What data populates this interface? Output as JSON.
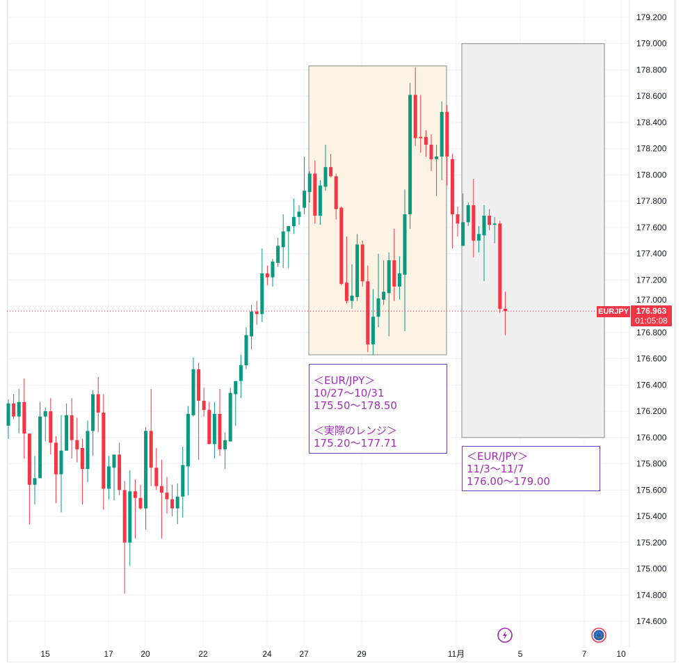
{
  "chart_data": {
    "type": "candlestick",
    "symbol": "EURJPY",
    "interval_note": "4-hour candles",
    "colors": {
      "up": "#089981",
      "down": "#f23645",
      "range_box_1": "#fdf3e4",
      "range_box_2": "#f0f0f0",
      "note_text": "#a32fb8",
      "note_border": "#6a3fc0"
    },
    "y_axis": {
      "min": 174.6,
      "max": 179.2,
      "step": 0.2,
      "tick_labels": [
        "179.200",
        "179.000",
        "178.800",
        "178.600",
        "178.400",
        "178.200",
        "178.000",
        "177.800",
        "177.600",
        "177.400",
        "177.200",
        "177.000",
        "176.800",
        "176.600",
        "176.400",
        "176.200",
        "176.000",
        "175.800",
        "175.600",
        "175.400",
        "175.200",
        "175.000",
        "174.800",
        "174.600"
      ]
    },
    "x_axis": {
      "tick_labels": [
        "15",
        "17",
        "20",
        "22",
        "24",
        "27",
        "29",
        "11月",
        "5",
        "7",
        "10"
      ]
    },
    "current_price": {
      "symbol_label": "EURJPY",
      "price": "176.963",
      "countdown": "01:05:08",
      "value": 176.963
    },
    "candles": [
      [
        176.09,
        176.29,
        175.99,
        176.26
      ],
      [
        176.26,
        176.33,
        176.14,
        176.16
      ],
      [
        176.16,
        176.37,
        176.03,
        176.27
      ],
      [
        176.27,
        176.45,
        175.84,
        176.03
      ],
      [
        176.03,
        176.03,
        175.34,
        175.64
      ],
      [
        175.64,
        175.86,
        175.49,
        175.69
      ],
      [
        175.69,
        176.27,
        175.69,
        176.16
      ],
      [
        176.16,
        176.23,
        175.97,
        176.2
      ],
      [
        176.2,
        176.3,
        175.87,
        175.96
      ],
      [
        175.96,
        176.01,
        175.5,
        175.72
      ],
      [
        175.72,
        176.17,
        175.43,
        175.9
      ],
      [
        175.9,
        176.26,
        175.9,
        176.17
      ],
      [
        176.17,
        176.3,
        175.84,
        175.98
      ],
      [
        175.98,
        176.15,
        175.81,
        175.91
      ],
      [
        175.92,
        175.99,
        175.49,
        175.76
      ],
      [
        175.76,
        176.13,
        175.66,
        176.05
      ],
      [
        176.05,
        176.36,
        175.86,
        176.33
      ],
      [
        176.33,
        176.46,
        176.04,
        176.19
      ],
      [
        176.19,
        176.33,
        175.45,
        175.61
      ],
      [
        175.61,
        175.86,
        175.53,
        175.78
      ],
      [
        175.77,
        175.87,
        175.52,
        175.87
      ],
      [
        175.87,
        175.96,
        175.56,
        175.6
      ],
      [
        175.6,
        175.67,
        174.81,
        175.2
      ],
      [
        175.2,
        175.75,
        175.02,
        175.59
      ],
      [
        175.59,
        175.68,
        175.23,
        175.54
      ],
      [
        175.54,
        175.64,
        175.45,
        175.46
      ],
      [
        175.46,
        176.08,
        175.3,
        176.05
      ],
      [
        176.05,
        176.37,
        175.63,
        175.77
      ],
      [
        175.77,
        175.92,
        175.6,
        175.63
      ],
      [
        175.63,
        175.83,
        175.23,
        175.58
      ],
      [
        175.58,
        175.7,
        175.42,
        175.53
      ],
      [
        175.53,
        175.64,
        175.4,
        175.46
      ],
      [
        175.46,
        175.65,
        175.34,
        175.55
      ],
      [
        175.55,
        175.93,
        175.39,
        175.79
      ],
      [
        175.78,
        176.24,
        175.56,
        176.18
      ],
      [
        176.17,
        176.61,
        176.16,
        176.52
      ],
      [
        176.52,
        176.57,
        175.83,
        176.28
      ],
      [
        176.28,
        176.38,
        176.16,
        176.21
      ],
      [
        176.21,
        176.27,
        175.95,
        175.95
      ],
      [
        175.95,
        176.27,
        175.84,
        176.18
      ],
      [
        176.18,
        176.37,
        175.86,
        175.91
      ],
      [
        175.91,
        176.04,
        175.76,
        175.98
      ],
      [
        175.97,
        176.38,
        175.97,
        176.34
      ],
      [
        176.33,
        176.43,
        176.09,
        176.43
      ],
      [
        176.43,
        176.63,
        176.3,
        176.55
      ],
      [
        176.55,
        176.84,
        176.52,
        176.78
      ],
      [
        176.77,
        177.01,
        176.67,
        176.96
      ],
      [
        176.96,
        177.04,
        176.86,
        176.94
      ],
      [
        176.94,
        177.44,
        176.88,
        177.25
      ],
      [
        177.25,
        177.31,
        177.16,
        177.22
      ],
      [
        177.22,
        177.36,
        177.15,
        177.34
      ],
      [
        177.33,
        177.52,
        177.3,
        177.46
      ],
      [
        177.45,
        177.7,
        177.29,
        177.57
      ],
      [
        177.57,
        177.61,
        177.29,
        177.61
      ],
      [
        177.61,
        177.82,
        177.55,
        177.68
      ],
      [
        177.68,
        177.77,
        177.62,
        177.72
      ],
      [
        177.75,
        178.14,
        177.7,
        177.88
      ],
      [
        177.87,
        178.03,
        177.79,
        178.01
      ],
      [
        178.01,
        178.11,
        177.63,
        177.69
      ],
      [
        177.69,
        177.96,
        177.62,
        177.92
      ],
      [
        177.91,
        178.23,
        177.88,
        178.06
      ],
      [
        178.06,
        178.16,
        177.98,
        177.99
      ],
      [
        177.99,
        178.01,
        177.66,
        177.74
      ],
      [
        177.75,
        177.76,
        177.16,
        177.17
      ],
      [
        177.18,
        177.53,
        177.02,
        177.04
      ],
      [
        177.04,
        177.32,
        176.98,
        177.08
      ],
      [
        177.07,
        177.55,
        177.04,
        177.47
      ],
      [
        177.47,
        177.5,
        177.15,
        177.19
      ],
      [
        177.19,
        177.31,
        176.65,
        176.71
      ],
      [
        176.71,
        177.13,
        176.63,
        176.92
      ],
      [
        176.92,
        177.4,
        176.84,
        177.06
      ],
      [
        177.05,
        177.35,
        177.01,
        177.11
      ],
      [
        177.1,
        177.41,
        176.77,
        177.35
      ],
      [
        177.35,
        177.59,
        177.04,
        177.15
      ],
      [
        177.15,
        177.38,
        177.05,
        177.25
      ],
      [
        177.24,
        177.89,
        176.81,
        177.7
      ],
      [
        177.7,
        178.7,
        177.59,
        178.61
      ],
      [
        178.61,
        178.82,
        178.22,
        178.28
      ],
      [
        178.29,
        178.61,
        178.17,
        178.28
      ],
      [
        178.29,
        178.34,
        178.14,
        178.23
      ],
      [
        178.23,
        178.31,
        178.03,
        178.12
      ],
      [
        178.12,
        178.23,
        177.84,
        178.14
      ],
      [
        178.14,
        178.56,
        177.96,
        178.48
      ],
      [
        178.48,
        178.53,
        177.92,
        178.14
      ],
      [
        178.12,
        178.16,
        177.44,
        177.7
      ],
      [
        177.7,
        177.76,
        177.53,
        177.63
      ],
      [
        177.46,
        177.86,
        177.46,
        177.64
      ],
      [
        177.64,
        177.79,
        177.61,
        177.77
      ],
      [
        177.77,
        177.97,
        177.37,
        177.5
      ],
      [
        177.5,
        177.61,
        177.41,
        177.55
      ],
      [
        177.54,
        177.77,
        177.19,
        177.69
      ],
      [
        177.69,
        177.74,
        177.58,
        177.62
      ],
      [
        177.62,
        177.68,
        177.48,
        177.63
      ],
      [
        177.63,
        177.65,
        176.95,
        176.98
      ],
      [
        176.98,
        177.11,
        176.78,
        176.963
      ]
    ],
    "range_boxes": [
      {
        "name": "week-10-27-box",
        "price_top": 178.83,
        "price_bottom": 176.63
      },
      {
        "name": "week-11-03-box",
        "price_top": 179.0,
        "price_bottom": 176.0
      }
    ],
    "annotations": [
      {
        "lines": [
          "＜EUR/JPY＞",
          "10/27〜10/31",
          "175.50〜178.50",
          "",
          "＜実際のレンジ＞",
          "175.20〜177.71"
        ]
      },
      {
        "lines": [
          "＜EUR/JPY＞",
          "11/3〜11/7",
          "176.00〜179.00"
        ]
      }
    ],
    "event_icons": [
      "lightning-event-icon",
      "eu-flag-icon"
    ]
  }
}
